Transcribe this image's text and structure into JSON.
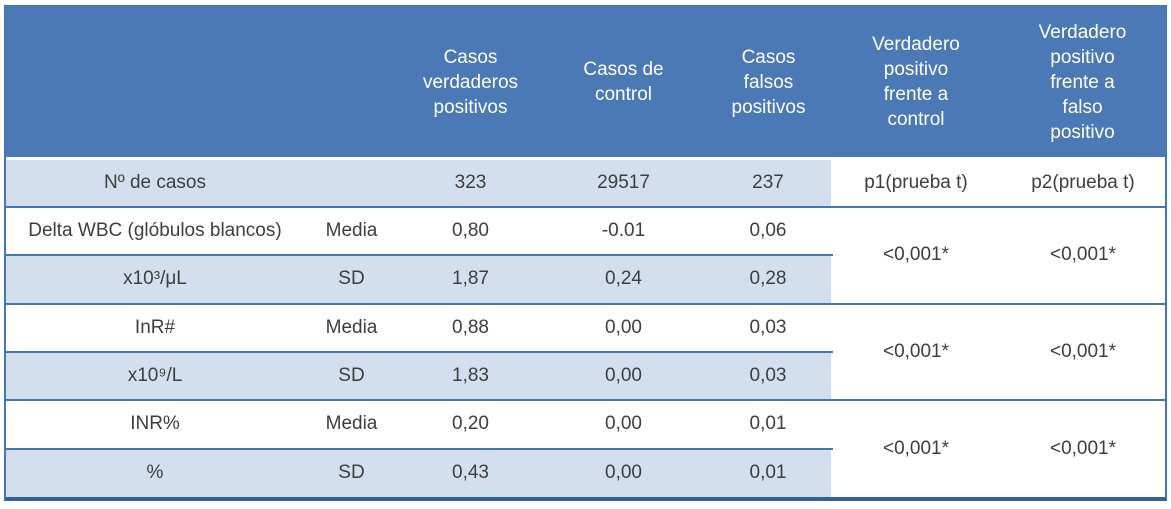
{
  "colors": {
    "header_bg": "#4b79b5",
    "header_text": "#ffffff",
    "alt_row_bg": "#d3dfef",
    "grid_line": "#4478af",
    "bottom_border": "#33619a",
    "body_text": "#3e3e3e"
  },
  "table": {
    "header": {
      "col3": "Casos verdaderos positivos",
      "col4": "Casos de control",
      "col5": "Casos falsos positivos",
      "col6": "Verdadero positivo frente a control",
      "col7": "Verdadero positivo frente a falso positivo"
    },
    "count_row": {
      "label": "Nº de casos",
      "true_positive": "323",
      "control": "29517",
      "false_positive": "237",
      "p1": "p1(prueba t)",
      "p2": "p2(prueba t)"
    },
    "stat_labels": {
      "media": "Media",
      "sd": "SD"
    },
    "groups": [
      {
        "name_label": "Delta WBC (glóbulos blancos)",
        "unit_label": "x10³/μL",
        "media_values": [
          "0,80",
          "-0.01",
          "0,06"
        ],
        "sd_values": [
          "1,87",
          "0,24",
          "0,28"
        ],
        "p1": "<0,001*",
        "p2": "<0,001*"
      },
      {
        "name_label": "InR#",
        "unit_label": "x10⁹/L",
        "media_values": [
          "0,88",
          "0,00",
          "0,03"
        ],
        "sd_values": [
          "1,83",
          "0,00",
          "0,03"
        ],
        "p1": "<0,001*",
        "p2": "<0,001*"
      },
      {
        "name_label": "INR%",
        "unit_label": "%",
        "media_values": [
          "0,20",
          "0,00",
          "0,01"
        ],
        "sd_values": [
          "0,43",
          "0,00",
          "0,01"
        ],
        "p1": "<0,001*",
        "p2": "<0,001*"
      }
    ]
  }
}
